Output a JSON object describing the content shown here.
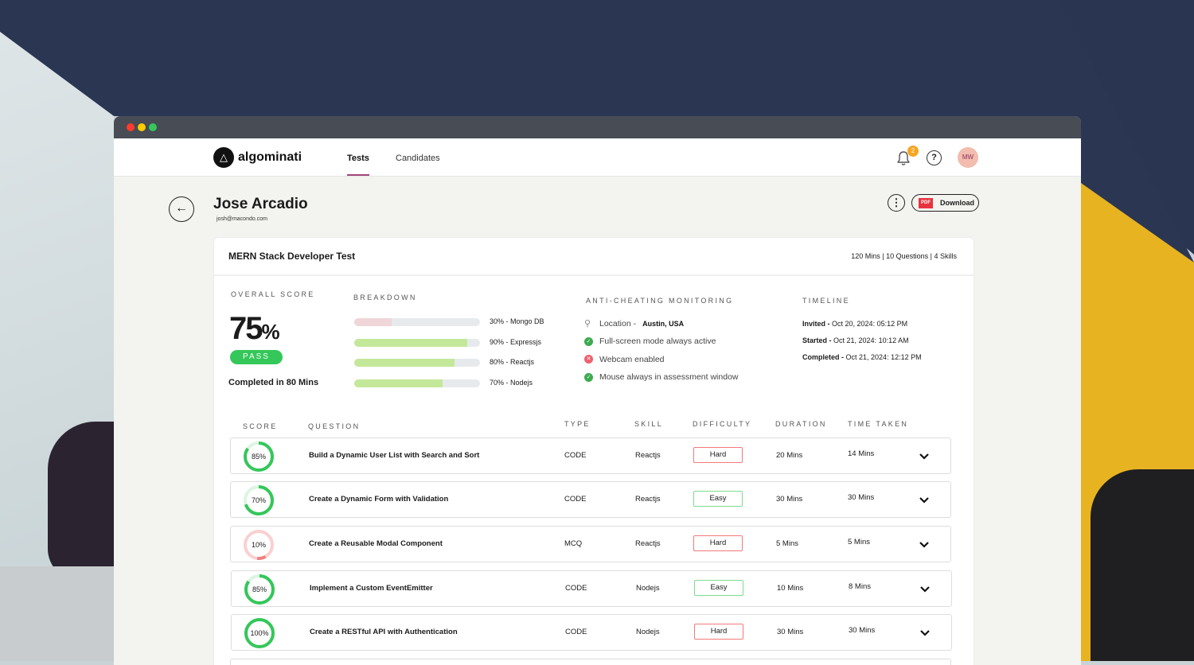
{
  "window": {
    "traffic_lights": [
      "#ff3b30",
      "#ffcc00",
      "#34c759"
    ]
  },
  "nav": {
    "brand": "algominati",
    "tabs": [
      {
        "label": "Tests",
        "active": true
      },
      {
        "label": "Candidates",
        "active": false
      }
    ],
    "notifications": "2",
    "help": "?",
    "avatar": "MW"
  },
  "candidate": {
    "name": "Jose Arcadio",
    "email": "josh@macondo.com",
    "download_label": "Download",
    "pdf_icon": "PDF"
  },
  "test": {
    "title": "MERN Stack Developer Test",
    "meta": "120 Mins | 10 Questions | 4 Skills"
  },
  "overall": {
    "label": "OVERALL SCORE",
    "value": "75",
    "unit": "%",
    "status": "PASS",
    "completed": "Completed in 80 Mins"
  },
  "breakdown": {
    "label": "BREAKDOWN",
    "items": [
      {
        "percent": 30,
        "text": "30% - Mongo DB",
        "color": "#f0d6d9"
      },
      {
        "percent": 90,
        "text": "90% - Expressjs",
        "color": "#c3e89a"
      },
      {
        "percent": 80,
        "text": "80% - Reactjs",
        "color": "#c3e89a"
      },
      {
        "percent": 70,
        "text": "70% - Nodejs",
        "color": "#c3e89a"
      }
    ]
  },
  "monitoring": {
    "label": "ANTI-CHEATING MONITORING",
    "location_label": "Location -",
    "location_value": "Austin, USA",
    "items": [
      {
        "text": "Full-screen mode always active",
        "status": "ok"
      },
      {
        "text": "Webcam enabled",
        "status": "fail"
      },
      {
        "text": "Mouse always in assessment window",
        "status": "ok"
      }
    ]
  },
  "timeline": {
    "label": "TIMELINE",
    "items": [
      {
        "label": "Invited -",
        "value": "Oct 20, 2024: 05:12 PM"
      },
      {
        "label": "Started -",
        "value": "Oct 21, 2024: 10:12 AM"
      },
      {
        "label": "Completed -",
        "value": "Oct 21, 2024: 12:12 PM"
      }
    ]
  },
  "table": {
    "headers": [
      "SCORE",
      "QUESTION",
      "TYPE",
      "SKILL",
      "DIFFICULTY",
      "DURATION",
      "TIME TAKEN"
    ],
    "rows": [
      {
        "score": 85,
        "score_text": "85%",
        "question": "Build a Dynamic User List with Search and Sort",
        "type": "CODE",
        "skill": "Reactjs",
        "difficulty": "Hard",
        "duration": "20 Mins",
        "taken": "14 Mins"
      },
      {
        "score": 70,
        "score_text": "70%",
        "question": "Create a Dynamic Form with Validation",
        "type": "CODE",
        "skill": "Reactjs",
        "difficulty": "Easy",
        "duration": "30 Mins",
        "taken": "30 Mins"
      },
      {
        "score": 10,
        "score_text": "10%",
        "question": "Create a Reusable Modal Component",
        "type": "MCQ",
        "skill": "Reactjs",
        "difficulty": "Hard",
        "duration": "5 Mins",
        "taken": "5 Mins"
      },
      {
        "score": 85,
        "score_text": "85%",
        "question": "Implement a Custom EventEmitter",
        "type": "CODE",
        "skill": "Nodejs",
        "difficulty": "Easy",
        "duration": "10 Mins",
        "taken": "8 Mins"
      },
      {
        "score": 100,
        "score_text": "100%",
        "question": "Create a RESTful API with Authentication",
        "type": "CODE",
        "skill": "Nodejs",
        "difficulty": "Hard",
        "duration": "30 Mins",
        "taken": "30 Mins"
      }
    ]
  }
}
